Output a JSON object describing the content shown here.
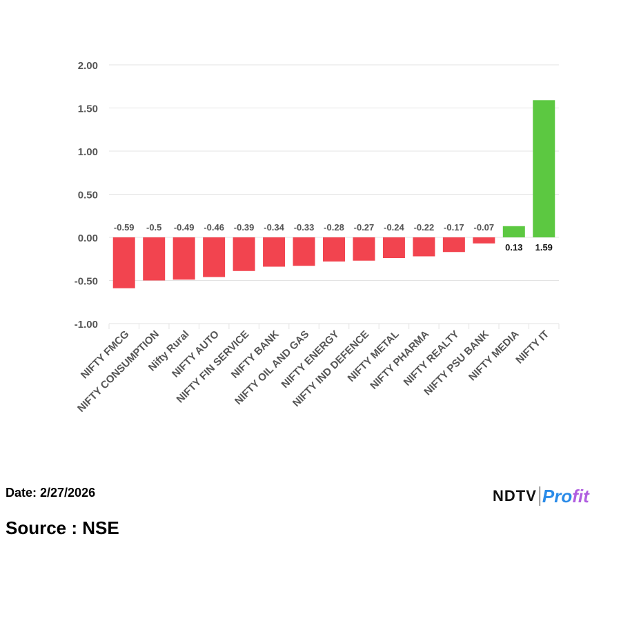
{
  "chart_data": {
    "type": "bar",
    "categories": [
      "NIFTY FMCG",
      "NIFTY CONSUMPTION",
      "Nifty Rural",
      "NIFTY AUTO",
      "NIFTY FIN SERVICE",
      "NIFTY BANK",
      "NIFTY OIL AND GAS",
      "NIFTY ENERGY",
      "NIFTY IND DEFENCE",
      "NIFTY METAL",
      "NIFTY PHARMA",
      "NIFTY REALTY",
      "NIFTY PSU BANK",
      "NIFTY MEDIA",
      "NIFTY IT"
    ],
    "values": [
      -0.59,
      -0.5,
      -0.49,
      -0.46,
      -0.39,
      -0.34,
      -0.33,
      -0.28,
      -0.27,
      -0.24,
      -0.22,
      -0.17,
      -0.07,
      0.13,
      1.59
    ],
    "value_labels": [
      "-0.59",
      "-0.5",
      "-0.49",
      "-0.46",
      "-0.39",
      "-0.34",
      "-0.33",
      "-0.28",
      "-0.27",
      "-0.24",
      "-0.22",
      "-0.17",
      "-0.07",
      "0.13",
      "1.59"
    ],
    "ylim": [
      -1.0,
      2.0
    ],
    "yticks": [
      2.0,
      1.5,
      1.0,
      0.5,
      0.0,
      -0.5,
      -1.0
    ],
    "ytick_labels": [
      "2.00",
      "1.50",
      "1.00",
      "0.50",
      "0.00",
      "-0.50",
      "-1.00"
    ],
    "grid": true,
    "colors": {
      "positive": "#5cc841",
      "negative": "#f2444f",
      "grid": "#e3e3e3",
      "tick_label": "#555555"
    },
    "title": "",
    "xlabel": "",
    "ylabel": ""
  },
  "footer": {
    "date": "Date: 2/27/2026",
    "source": "Source : NSE"
  },
  "brand": {
    "ndtv": "NDTV",
    "profit_p": "Pro",
    "profit_rest": "fit"
  }
}
